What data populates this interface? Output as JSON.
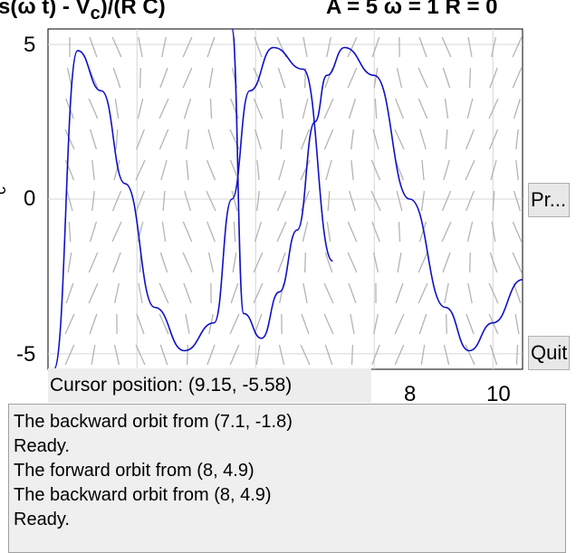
{
  "window": {
    "title_left": "s(ω t) - V",
    "title_left_sub": "c",
    "title_left_tail": ")/(R C)",
    "title_right": "A = 5    ω = 1    R = 0"
  },
  "axes": {
    "ylabel": "c",
    "yticks": [
      "5",
      "0",
      "-5"
    ],
    "xticks": [
      "8",
      "10"
    ]
  },
  "buttons": {
    "print_label": "Pr...",
    "quit_label": "Quit"
  },
  "status": {
    "cursor_label": "Cursor position:",
    "cursor_value": "(9.15, -5.58)"
  },
  "messages": [
    "The backward orbit from (7.1, -1.8)",
    "Ready.",
    "The forward orbit from (8, 4.9)",
    "The backward orbit from (8, 4.9)",
    "Ready."
  ],
  "chart_data": {
    "type": "line",
    "xlim": [
      2.5,
      10.5
    ],
    "ylim": [
      -5.5,
      5.5
    ],
    "grid": true,
    "series": [
      {
        "x": [
          2.6,
          3.0,
          3.4,
          3.8,
          4.3,
          4.8,
          5.3,
          5.6,
          5.9,
          6.3,
          6.8,
          7.3
        ],
        "y": [
          -5.5,
          4.8,
          3.5,
          0.5,
          -3.5,
          -4.9,
          -4.0,
          0.0,
          3.5,
          4.9,
          4.2,
          -2.0
        ]
      },
      {
        "x": [
          5.6,
          5.8,
          6.1,
          6.4,
          6.7,
          7.0,
          7.2,
          7.5,
          8.0,
          8.6,
          9.2,
          9.6,
          10.0,
          10.5
        ],
        "y": [
          5.5,
          -3.7,
          -4.5,
          -3.0,
          -1.0,
          2.5,
          4.0,
          4.9,
          4.0,
          0.0,
          -3.5,
          -4.9,
          -4.0,
          -2.6
        ]
      }
    ]
  }
}
